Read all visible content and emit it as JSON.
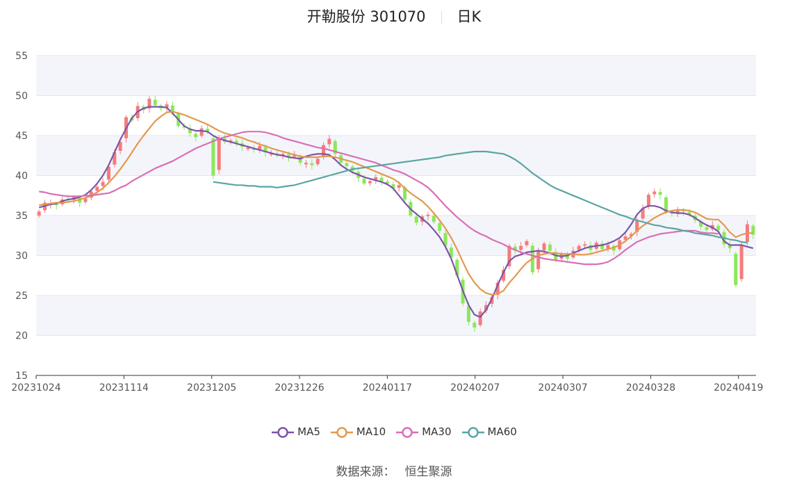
{
  "header": {
    "stock_name_code": "开勒股份 301070",
    "period": "日K"
  },
  "source": {
    "label": "数据来源：",
    "provider": "恒生聚源"
  },
  "chart_data": {
    "type": "candlestick",
    "title": "开勒股份 301070",
    "period": "日K",
    "xlabel": "",
    "ylabel": "",
    "ylim": [
      15,
      55
    ],
    "y_ticks": [
      15,
      20,
      25,
      30,
      35,
      40,
      45,
      50,
      55
    ],
    "x_tick_labels": [
      "20231024",
      "20231114",
      "20231205",
      "20231226",
      "20240117",
      "20240207",
      "20240307",
      "20240328",
      "20240419"
    ],
    "x_tick_index": [
      0,
      15,
      30,
      45,
      60,
      75,
      90,
      105,
      120
    ],
    "grid": true,
    "legend_position": "bottom",
    "colors": {
      "up": "#f47c7c",
      "down": "#8be85a",
      "MA5": "#7b55a8",
      "MA10": "#e3994d",
      "MA30": "#d86fb6",
      "MA60": "#5ba4a4"
    },
    "closes": [
      35.5,
      36.6,
      36.5,
      36.3,
      37.0,
      36.9,
      37.3,
      36.6,
      37.1,
      38.0,
      38.6,
      39.2,
      41.1,
      42.9,
      44.2,
      47.3,
      46.9,
      48.7,
      48.2,
      49.6,
      48.8,
      48.4,
      48.9,
      48.0,
      46.2,
      46.0,
      45.3,
      44.8,
      45.9,
      45.5,
      40.0,
      44.7,
      44.2,
      44.4,
      44.1,
      43.6,
      43.5,
      43.2,
      43.7,
      42.9,
      42.8,
      42.6,
      42.7,
      42.3,
      42.6,
      41.6,
      41.6,
      41.3,
      42.1,
      43.8,
      44.6,
      42.7,
      41.6,
      41.2,
      40.6,
      39.7,
      39.0,
      39.3,
      39.8,
      39.3,
      39.0,
      38.4,
      38.8,
      37.0,
      35.0,
      34.1,
      34.9,
      35.1,
      34.2,
      33.1,
      31.2,
      29.8,
      27.5,
      24.0,
      21.7,
      21.0,
      23.0,
      23.8,
      24.8,
      26.6,
      28.2,
      31.2,
      30.6,
      31.2,
      31.8,
      27.9,
      30.5,
      31.5,
      30.6,
      29.5,
      30.2,
      29.6,
      30.6,
      31.2,
      31.4,
      30.7,
      31.6,
      30.8,
      31.3,
      30.6,
      31.9,
      32.4,
      32.7,
      34.4,
      35.9,
      37.6,
      38.0,
      37.6,
      35.4,
      35.2,
      35.6,
      35.5,
      35.1,
      34.4,
      33.6,
      33.2,
      33.8,
      33.2,
      31.4,
      30.9,
      26.3,
      31.3,
      33.9,
      32.6
    ],
    "series": [
      {
        "name": "MA5",
        "values": [
          36.0,
          36.2,
          36.4,
          36.5,
          36.8,
          37.0,
          37.1,
          37.3,
          37.6,
          38.2,
          39.0,
          40.0,
          41.3,
          42.9,
          44.5,
          45.9,
          47.2,
          48.0,
          48.4,
          48.6,
          48.6,
          48.6,
          48.5,
          47.8,
          47.0,
          46.2,
          45.8,
          45.6,
          45.6,
          45.5,
          45.0,
          44.6,
          44.4,
          44.2,
          44.0,
          43.8,
          43.6,
          43.4,
          43.2,
          43.0,
          42.8,
          42.6,
          42.5,
          42.3,
          42.2,
          42.1,
          42.4,
          42.6,
          42.7,
          42.7,
          42.6,
          42.0,
          41.3,
          40.8,
          40.4,
          40.1,
          39.8,
          39.6,
          39.4,
          39.2,
          38.9,
          38.4,
          37.5,
          36.6,
          35.8,
          35.2,
          34.6,
          34.0,
          33.2,
          32.3,
          31.1,
          29.6,
          27.6,
          25.6,
          23.8,
          22.6,
          22.3,
          23.2,
          24.6,
          26.3,
          27.9,
          29.3,
          29.9,
          30.1,
          30.4,
          30.5,
          30.6,
          30.5,
          30.3,
          30.0,
          29.9,
          30.0,
          30.3,
          30.6,
          30.9,
          31.1,
          31.2,
          31.3,
          31.5,
          31.8,
          32.2,
          32.9,
          33.9,
          35.1,
          35.9,
          36.2,
          36.2,
          36.0,
          35.6,
          35.4,
          35.3,
          35.3,
          35.1,
          34.7,
          34.2,
          33.8,
          33.5,
          33.0,
          31.8,
          31.3,
          31.3,
          31.3,
          31.1,
          30.9
        ]
      },
      {
        "name": "MA10",
        "values": [
          36.3,
          36.4,
          36.5,
          36.6,
          36.6,
          36.7,
          36.8,
          37.0,
          37.2,
          37.5,
          37.9,
          38.4,
          39.1,
          39.9,
          40.8,
          41.8,
          42.9,
          44.0,
          45.0,
          45.9,
          46.8,
          47.4,
          47.9,
          48.0,
          47.8,
          47.6,
          47.3,
          47.0,
          46.7,
          46.4,
          46.0,
          45.6,
          45.3,
          45.1,
          44.9,
          44.7,
          44.4,
          44.2,
          43.9,
          43.7,
          43.4,
          43.2,
          43.0,
          42.8,
          42.6,
          42.4,
          42.3,
          42.3,
          42.3,
          42.4,
          42.4,
          42.3,
          42.1,
          41.9,
          41.7,
          41.4,
          41.1,
          40.8,
          40.5,
          40.2,
          39.9,
          39.6,
          39.1,
          38.4,
          37.8,
          37.3,
          36.8,
          36.1,
          35.3,
          34.4,
          33.4,
          32.2,
          30.8,
          29.2,
          27.7,
          26.6,
          25.8,
          25.3,
          25.1,
          25.2,
          25.6,
          26.6,
          27.4,
          28.3,
          29.1,
          29.6,
          30.0,
          30.2,
          30.3,
          30.3,
          30.2,
          30.2,
          30.2,
          30.1,
          30.1,
          30.2,
          30.4,
          30.6,
          30.8,
          31.0,
          31.3,
          31.8,
          32.4,
          33.1,
          33.7,
          34.2,
          34.7,
          35.1,
          35.4,
          35.6,
          35.7,
          35.7,
          35.6,
          35.4,
          35.0,
          34.6,
          34.5,
          34.5,
          33.8,
          32.9,
          32.3,
          32.6,
          32.8,
          32.8
        ]
      },
      {
        "name": "MA30",
        "values": [
          38.0,
          37.9,
          37.7,
          37.6,
          37.5,
          37.4,
          37.4,
          37.4,
          37.5,
          37.5,
          37.6,
          37.7,
          37.8,
          38.1,
          38.5,
          38.8,
          39.3,
          39.7,
          40.1,
          40.5,
          40.9,
          41.2,
          41.5,
          41.8,
          42.2,
          42.6,
          43.0,
          43.4,
          43.7,
          44.0,
          44.3,
          44.6,
          44.8,
          45.0,
          45.2,
          45.4,
          45.5,
          45.5,
          45.5,
          45.4,
          45.2,
          45.0,
          44.7,
          44.5,
          44.3,
          44.1,
          43.9,
          43.7,
          43.5,
          43.4,
          43.2,
          43.0,
          42.8,
          42.6,
          42.4,
          42.2,
          42.0,
          41.8,
          41.6,
          41.3,
          41.0,
          40.7,
          40.5,
          40.2,
          39.8,
          39.4,
          39.0,
          38.5,
          37.8,
          37.0,
          36.2,
          35.5,
          34.8,
          34.2,
          33.6,
          33.1,
          32.7,
          32.4,
          32.0,
          31.7,
          31.4,
          31.0,
          30.7,
          30.4,
          30.2,
          30.0,
          29.8,
          29.6,
          29.5,
          29.4,
          29.3,
          29.2,
          29.1,
          29.0,
          28.9,
          28.9,
          28.9,
          29.0,
          29.2,
          29.6,
          30.1,
          30.7,
          31.2,
          31.7,
          32.0,
          32.3,
          32.5,
          32.7,
          32.8,
          32.9,
          33.0,
          33.1,
          33.1,
          33.1,
          32.9,
          32.8,
          32.8,
          32.7
        ]
      },
      {
        "name": "MA60",
        "values": [
          39.2,
          39.1,
          39.0,
          38.9,
          38.8,
          38.8,
          38.7,
          38.7,
          38.6,
          38.6,
          38.6,
          38.5,
          38.6,
          38.7,
          38.8,
          39.0,
          39.2,
          39.4,
          39.6,
          39.8,
          40.0,
          40.2,
          40.4,
          40.6,
          40.8,
          40.9,
          41.0,
          41.1,
          41.2,
          41.3,
          41.4,
          41.5,
          41.6,
          41.7,
          41.8,
          41.9,
          42.0,
          42.1,
          42.2,
          42.3,
          42.5,
          42.6,
          42.7,
          42.8,
          42.9,
          43.0,
          43.0,
          43.0,
          42.9,
          42.8,
          42.7,
          42.4,
          42.0,
          41.5,
          40.9,
          40.3,
          39.8,
          39.3,
          38.8,
          38.4,
          38.1,
          37.8,
          37.5,
          37.2,
          36.9,
          36.6,
          36.3,
          36.0,
          35.7,
          35.4,
          35.1,
          34.9,
          34.6,
          34.4,
          34.2,
          34.0,
          33.8,
          33.7,
          33.5,
          33.4,
          33.3,
          33.1,
          33.0,
          32.8,
          32.7,
          32.6,
          32.5,
          32.3,
          32.2,
          32.0,
          31.9,
          31.7,
          31.6
        ]
      }
    ],
    "ma_start_index": {
      "MA5": 0,
      "MA10": 0,
      "MA30": 0,
      "MA60": 30
    }
  }
}
